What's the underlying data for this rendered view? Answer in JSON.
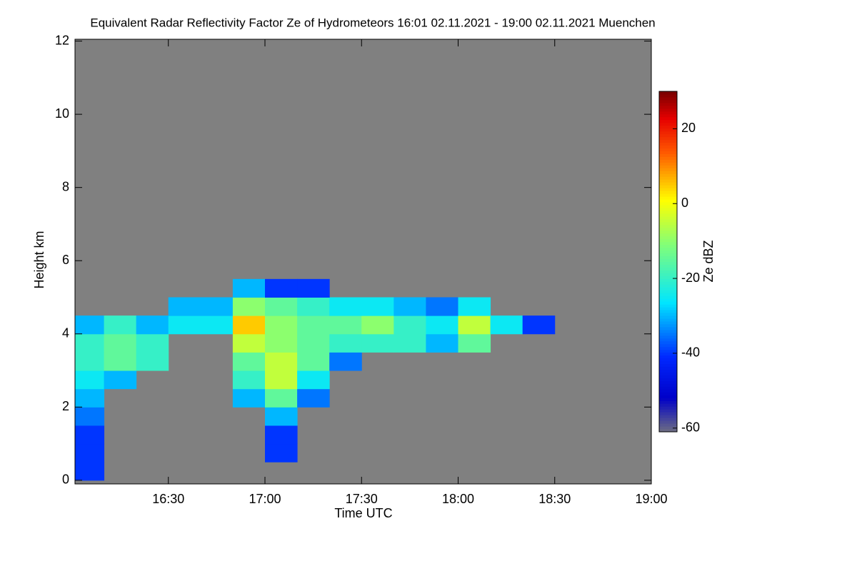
{
  "chart_data": {
    "type": "heatmap",
    "title": "Equivalent Radar Reflectivity Factor Ze of Hydrometeors   16:01 02.11.2021 - 19:00 02.11.2021 Muenchen",
    "x_label": "Time UTC",
    "y_label": "Height km",
    "colorbar_label": "Ze dBZ",
    "xlim": [
      961,
      1140
    ],
    "ylim": [
      -0.1,
      12.05
    ],
    "xticks": [
      {
        "value": 990,
        "label": "16:30"
      },
      {
        "value": 1020,
        "label": "17:00"
      },
      {
        "value": 1050,
        "label": "17:30"
      },
      {
        "value": 1080,
        "label": "18:00"
      },
      {
        "value": 1110,
        "label": "18:30"
      },
      {
        "value": 1140,
        "label": "19:00"
      }
    ],
    "yticks": [
      0,
      2,
      4,
      6,
      8,
      10,
      12
    ],
    "clim": [
      -61,
      30
    ],
    "cticks": [
      -60,
      -40,
      -20,
      0,
      20
    ],
    "background": "#808080",
    "xbins": [
      961,
      970,
      980,
      990,
      1000,
      1010,
      1020,
      1030,
      1040,
      1050,
      1060,
      1070,
      1080,
      1090,
      1100,
      1110
    ],
    "ybins": [
      0,
      0.5,
      1,
      1.5,
      2,
      2.5,
      3,
      3.5,
      4,
      4.5,
      5,
      5.5
    ],
    "z": [
      [
        -40,
        null,
        null,
        null,
        null,
        null,
        null,
        null,
        null,
        null,
        null,
        null,
        null,
        null,
        null
      ],
      [
        -40,
        null,
        null,
        null,
        null,
        null,
        -40,
        null,
        null,
        null,
        null,
        null,
        null,
        null,
        null
      ],
      [
        -40,
        null,
        null,
        null,
        null,
        null,
        -40,
        null,
        null,
        null,
        null,
        null,
        null,
        null,
        null
      ],
      [
        -35,
        null,
        null,
        null,
        null,
        null,
        -30,
        null,
        null,
        null,
        null,
        null,
        null,
        null,
        null
      ],
      [
        -30,
        null,
        null,
        null,
        null,
        -30,
        -15,
        -35,
        null,
        null,
        null,
        null,
        null,
        null,
        null
      ],
      [
        -25,
        -30,
        null,
        null,
        null,
        -20,
        -5,
        -25,
        null,
        null,
        null,
        null,
        null,
        null,
        null
      ],
      [
        -20,
        -15,
        -20,
        null,
        null,
        -15,
        -5,
        -15,
        -35,
        null,
        null,
        null,
        null,
        null,
        null
      ],
      [
        -20,
        -15,
        -20,
        null,
        null,
        -5,
        -10,
        -15,
        -20,
        -20,
        -20,
        -30,
        -15,
        null,
        null
      ],
      [
        -30,
        -20,
        -30,
        -25,
        -25,
        5,
        -10,
        -15,
        -15,
        -10,
        -20,
        -25,
        -5,
        -25,
        -40
      ],
      [
        null,
        null,
        null,
        -30,
        -30,
        -10,
        -15,
        -20,
        -25,
        -25,
        -30,
        -35,
        -25,
        null,
        null
      ],
      [
        null,
        null,
        null,
        null,
        null,
        -30,
        -40,
        -40,
        null,
        null,
        null,
        null,
        null,
        null,
        null
      ]
    ]
  }
}
